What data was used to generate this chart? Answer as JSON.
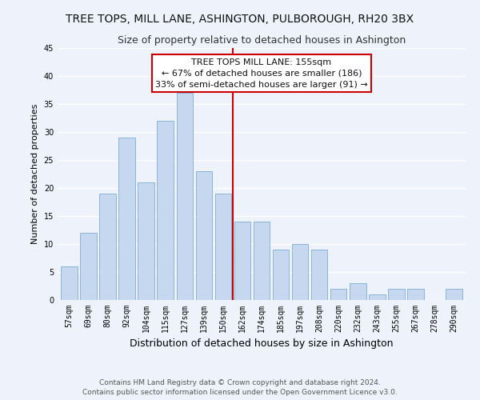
{
  "title": "TREE TOPS, MILL LANE, ASHINGTON, PULBOROUGH, RH20 3BX",
  "subtitle": "Size of property relative to detached houses in Ashington",
  "xlabel": "Distribution of detached houses by size in Ashington",
  "ylabel": "Number of detached properties",
  "bar_labels": [
    "57sqm",
    "69sqm",
    "80sqm",
    "92sqm",
    "104sqm",
    "115sqm",
    "127sqm",
    "139sqm",
    "150sqm",
    "162sqm",
    "174sqm",
    "185sqm",
    "197sqm",
    "208sqm",
    "220sqm",
    "232sqm",
    "243sqm",
    "255sqm",
    "267sqm",
    "278sqm",
    "290sqm"
  ],
  "bar_values": [
    6,
    12,
    19,
    29,
    21,
    32,
    37,
    23,
    19,
    14,
    14,
    9,
    10,
    9,
    2,
    3,
    1,
    2,
    2,
    0,
    2
  ],
  "bar_color": "#c5d8f0",
  "bar_edge_color": "#8ab4d8",
  "ylim": [
    0,
    45
  ],
  "yticks": [
    0,
    5,
    10,
    15,
    20,
    25,
    30,
    35,
    40,
    45
  ],
  "property_label": "TREE TOPS MILL LANE: 155sqm",
  "annotation_line1": "← 67% of detached houses are smaller (186)",
  "annotation_line2": "33% of semi-detached houses are larger (91) →",
  "vline_x_index": 8.5,
  "vline_color": "#cc0000",
  "annotation_box_color": "#ffffff",
  "annotation_box_edge": "#cc0000",
  "footer1": "Contains HM Land Registry data © Crown copyright and database right 2024.",
  "footer2": "Contains public sector information licensed under the Open Government Licence v3.0.",
  "bg_color": "#eef3fb",
  "grid_color": "#ffffff",
  "title_fontsize": 10,
  "subtitle_fontsize": 9,
  "xlabel_fontsize": 9,
  "ylabel_fontsize": 8,
  "tick_fontsize": 7,
  "annotation_fontsize": 8,
  "footer_fontsize": 6.5
}
